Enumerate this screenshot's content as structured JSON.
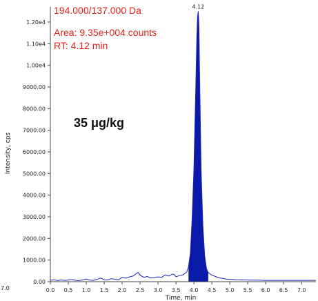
{
  "chart_data": {
    "type": "line",
    "xlabel": "Time, min",
    "ylabel": "Intensity, cps",
    "xlim": [
      0.0,
      7.4
    ],
    "ylim": [
      0,
      12700
    ],
    "x_ticks": [
      "0.0",
      "0.5",
      "1.0",
      "1.5",
      "2.0",
      "2.5",
      "3.0",
      "3.5",
      "4.0",
      "4.5",
      "5.0",
      "5.5",
      "6.0",
      "6.5",
      "7.0"
    ],
    "x_tick_values": [
      0.0,
      0.5,
      1.0,
      1.5,
      2.0,
      2.5,
      3.0,
      3.5,
      4.0,
      4.5,
      5.0,
      5.5,
      6.0,
      6.5,
      7.0
    ],
    "y_ticks": [
      "0.00",
      "1000.00",
      "2000.00",
      "3000.00",
      "4000.00",
      "5000.00",
      "6000.00",
      "7000.00",
      "8000.00",
      "9000.00",
      "1.00e4",
      "1.10e4",
      "1.20e4"
    ],
    "y_tick_values": [
      0,
      1000,
      2000,
      3000,
      4000,
      5000,
      6000,
      7000,
      8000,
      9000,
      10000,
      11000,
      12000
    ],
    "left_edge_labels": [
      "7.0"
    ],
    "peak_label": "4.12",
    "peak": {
      "x": 4.12,
      "y": 12500
    },
    "annotations": {
      "transition": "194.000/137.000 Da",
      "area": "Area: 9.35e+004 counts",
      "rt": "RT: 4.12 min",
      "concentration": "35 μg/kg"
    },
    "colors": {
      "trace": "#1f1fbf",
      "fill": "#0a1aa8",
      "annotation": "#e0201c"
    },
    "series": [
      {
        "x": [
          0.0,
          0.1,
          0.2,
          0.3,
          0.4,
          0.5,
          0.6,
          0.7,
          0.8,
          0.9,
          1.0,
          1.1,
          1.2,
          1.3,
          1.4,
          1.5,
          1.6,
          1.7,
          1.8,
          1.9,
          2.0,
          2.1,
          2.2,
          2.3,
          2.4,
          2.45,
          2.5,
          2.6,
          2.7,
          2.8,
          2.9,
          3.0,
          3.1,
          3.2,
          3.3,
          3.4,
          3.45,
          3.5,
          3.6,
          3.7,
          3.8,
          3.85,
          3.9,
          3.95,
          4.0,
          4.05,
          4.08,
          4.1,
          4.12,
          4.14,
          4.16,
          4.2,
          4.25,
          4.3,
          4.35,
          4.4,
          4.5,
          4.6,
          4.7,
          4.8,
          4.9,
          5.0,
          5.2,
          5.4,
          5.6,
          5.8,
          6.0,
          6.2,
          6.4,
          6.6,
          6.8,
          7.0,
          7.2,
          7.4
        ],
        "y": [
          60,
          90,
          50,
          80,
          60,
          70,
          100,
          60,
          50,
          80,
          120,
          70,
          60,
          100,
          170,
          90,
          80,
          140,
          110,
          90,
          200,
          160,
          220,
          260,
          380,
          420,
          300,
          200,
          240,
          170,
          190,
          220,
          200,
          310,
          260,
          350,
          330,
          230,
          280,
          320,
          450,
          700,
          1300,
          2900,
          5200,
          8800,
          11200,
          12200,
          12500,
          11800,
          9500,
          5200,
          2600,
          1200,
          600,
          420,
          300,
          240,
          180,
          150,
          120,
          110,
          90,
          80,
          70,
          70,
          60,
          60,
          60,
          60,
          60,
          60,
          60,
          60
        ]
      }
    ]
  }
}
